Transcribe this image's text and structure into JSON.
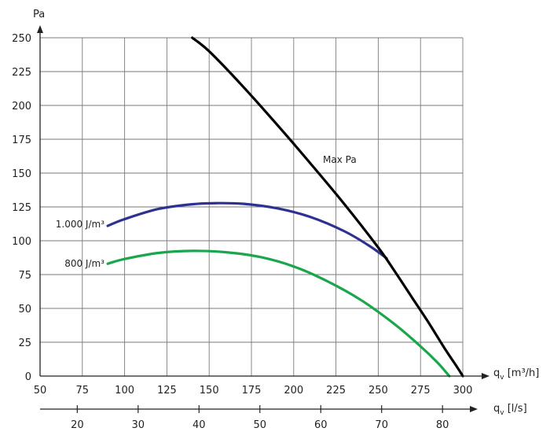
{
  "chart_data": {
    "type": "line",
    "title": "",
    "xlabel": "q_v [m³/h]",
    "ylabel": "Pa",
    "xlabel2": "q_v [l/s]",
    "xlim": [
      50,
      300
    ],
    "ylim": [
      0,
      250
    ],
    "x_ticks": [
      "50",
      "75",
      "100",
      "125",
      "150",
      "175",
      "200",
      "225",
      "250",
      "275",
      "300"
    ],
    "y_ticks": [
      "0",
      "25",
      "50",
      "75",
      "100",
      "125",
      "150",
      "175",
      "200",
      "225",
      "250"
    ],
    "x2_ticks": [
      "20",
      "30",
      "40",
      "50",
      "60",
      "70",
      "80"
    ],
    "x2_tick_values_m3h": [
      72,
      108,
      144,
      180,
      216,
      252,
      288
    ],
    "grid": true,
    "series": [
      {
        "name": "Max Pa",
        "color": "#000000",
        "x": [
          140,
          150,
          170,
          190,
          210,
          230,
          250,
          260,
          270,
          280,
          290,
          297,
          300
        ],
        "y": [
          250,
          240,
          214,
          186,
          157,
          127,
          95,
          77,
          58,
          39,
          19,
          6,
          0
        ]
      },
      {
        "name": "1.000 J/m³",
        "color": "#2e3192",
        "x": [
          90,
          100,
          120,
          140,
          155,
          170,
          190,
          210,
          230,
          245,
          255
        ],
        "y": [
          111,
          116,
          123.5,
          127,
          127.8,
          127.3,
          124,
          117.5,
          107,
          96,
          87
        ]
      },
      {
        "name": "800 J/m³",
        "color": "#1aa64a",
        "x": [
          90,
          100,
          120,
          140,
          160,
          180,
          200,
          220,
          240,
          260,
          275,
          285,
          292
        ],
        "y": [
          83,
          86.5,
          91,
          92.5,
          91.5,
          88,
          81,
          70,
          56,
          38,
          22,
          10,
          0
        ]
      }
    ]
  }
}
